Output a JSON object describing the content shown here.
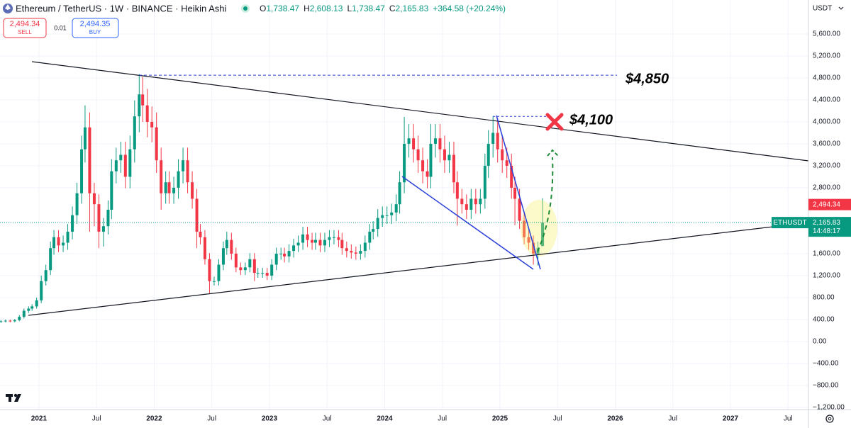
{
  "chart_data": {
    "type": "candlestick",
    "title": "Ethereum / TetherUS · 1W · BINANCE · Heikin Ashi",
    "legend_ohlc": [
      {
        "key": "O",
        "value": "1,738.47"
      },
      {
        "key": "H",
        "value": "2,608.13"
      },
      {
        "key": "L",
        "value": "1,738.47"
      },
      {
        "key": "C",
        "value": "2,165.83"
      }
    ],
    "change": "+364.58 (+20.24%)",
    "sell": {
      "price": "2,494.34",
      "label": "SELL"
    },
    "lot": "0.01",
    "buy": {
      "price": "2,494.35",
      "label": "BUY"
    },
    "currency": "USDT",
    "up_color": "#089981",
    "down_color": "#f23645",
    "grid": true,
    "x": [
      2020.67,
      2020.71,
      2020.75,
      2020.79,
      2020.83,
      2020.87,
      2020.91,
      2020.94,
      2020.98,
      2021.02,
      2021.06,
      2021.1,
      2021.13,
      2021.17,
      2021.21,
      2021.25,
      2021.29,
      2021.33,
      2021.37,
      2021.4,
      2021.44,
      2021.48,
      2021.52,
      2021.56,
      2021.6,
      2021.63,
      2021.67,
      2021.71,
      2021.75,
      2021.79,
      2021.83,
      2021.87,
      2021.9,
      2021.94,
      2021.98,
      2022.02,
      2022.06,
      2022.1,
      2022.13,
      2022.17,
      2022.21,
      2022.25,
      2022.29,
      2022.33,
      2022.37,
      2022.4,
      2022.44,
      2022.48,
      2022.52,
      2022.56,
      2022.6,
      2022.63,
      2022.67,
      2022.71,
      2022.75,
      2022.79,
      2022.83,
      2022.87,
      2022.9,
      2022.94,
      2022.98,
      2023.02,
      2023.06,
      2023.1,
      2023.13,
      2023.17,
      2023.21,
      2023.25,
      2023.29,
      2023.33,
      2023.37,
      2023.4,
      2023.44,
      2023.48,
      2023.52,
      2023.56,
      2023.6,
      2023.63,
      2023.67,
      2023.71,
      2023.75,
      2023.79,
      2023.83,
      2023.87,
      2023.9,
      2023.94,
      2023.98,
      2024.02,
      2024.06,
      2024.1,
      2024.13,
      2024.17,
      2024.21,
      2024.25,
      2024.29,
      2024.33,
      2024.37,
      2024.4,
      2024.44,
      2024.48,
      2024.52,
      2024.56,
      2024.6,
      2024.63,
      2024.67,
      2024.71,
      2024.75,
      2024.79,
      2024.83,
      2024.87,
      2024.9,
      2024.94,
      2024.98,
      2025.02,
      2025.06,
      2025.1,
      2025.13,
      2025.17,
      2025.21,
      2025.25,
      2025.29,
      2025.33,
      2025.37
    ],
    "open": [
      360,
      370,
      380,
      370,
      390,
      450,
      560,
      600,
      640,
      750,
      1100,
      1300,
      1700,
      1900,
      1750,
      1800,
      2000,
      2300,
      2700,
      3500,
      3900,
      2700,
      2500,
      2000,
      2100,
      2400,
      3100,
      3300,
      3400,
      3000,
      3500,
      4100,
      4500,
      4300,
      4000,
      3900,
      3300,
      2700,
      2900,
      2700,
      2800,
      3100,
      3300,
      2900,
      2600,
      2000,
      1900,
      1500,
      1100,
      1100,
      1400,
      1700,
      1850,
      1600,
      1350,
      1300,
      1350,
      1500,
      1250,
      1250,
      1250,
      1200,
      1400,
      1600,
      1600,
      1550,
      1650,
      1750,
      1800,
      1950,
      1850,
      1800,
      1850,
      1750,
      1850,
      1900,
      1900,
      1850,
      1700,
      1650,
      1620,
      1600,
      1650,
      1800,
      2000,
      2050,
      2250,
      2300,
      2300,
      2350,
      2500,
      2900,
      3600,
      3700,
      3500,
      3300,
      3100,
      3000,
      3600,
      3700,
      3500,
      3300,
      3400,
      2900,
      2600,
      2500,
      2400,
      2600,
      2500,
      2600,
      3200,
      3600,
      3800,
      3500,
      3300,
      3200,
      2800,
      2600,
      2200,
      1900,
      1800,
      1600,
      1738.47
    ],
    "high": [
      390,
      400,
      400,
      410,
      480,
      600,
      640,
      680,
      800,
      1200,
      1400,
      1820,
      2030,
      2030,
      1930,
      2140,
      2460,
      2890,
      3750,
      4300,
      4170,
      2890,
      2680,
      2250,
      2570,
      3320,
      3530,
      3640,
      3640,
      3750,
      4390,
      4870,
      4820,
      4600,
      4280,
      4170,
      3530,
      3100,
      3100,
      3000,
      3320,
      3530,
      3530,
      3100,
      2780,
      2140,
      2030,
      1610,
      1180,
      1500,
      1820,
      2000,
      1980,
      1710,
      1440,
      1440,
      1610,
      1610,
      1340,
      1340,
      1340,
      1500,
      1710,
      1710,
      1710,
      1770,
      1870,
      1930,
      2090,
      2090,
      1980,
      1980,
      1980,
      1980,
      2030,
      2030,
      2030,
      1980,
      1820,
      1770,
      1730,
      1770,
      1930,
      2140,
      2190,
      2410,
      2460,
      2460,
      2510,
      2680,
      3100,
      4090,
      3960,
      3960,
      3750,
      3530,
      3320,
      3960,
      3960,
      3960,
      3750,
      3640,
      3640,
      3100,
      2780,
      2680,
      2780,
      2780,
      2780,
      3420,
      3850,
      4100,
      4070,
      3750,
      3530,
      3420,
      3000,
      2780,
      2350,
      2030,
      1930,
      1820,
      2608.13
    ],
    "low": [
      340,
      350,
      350,
      350,
      370,
      420,
      520,
      560,
      600,
      700,
      1020,
      1210,
      1580,
      1630,
      1630,
      1670,
      1860,
      2140,
      2510,
      3260,
      2000,
      2100,
      1700,
      1730,
      1950,
      2230,
      2880,
      3070,
      2790,
      2790,
      3260,
      3810,
      4000,
      3720,
      3630,
      3070,
      2400,
      2510,
      2510,
      2510,
      2600,
      2880,
      2700,
      2420,
      1700,
      1770,
      1400,
      880,
      1020,
      1020,
      1300,
      1580,
      1490,
      1260,
      1210,
      1210,
      1260,
      1100,
      1160,
      1160,
      1120,
      1120,
      1300,
      1490,
      1440,
      1440,
      1530,
      1630,
      1670,
      1720,
      1670,
      1670,
      1630,
      1630,
      1720,
      1770,
      1720,
      1580,
      1530,
      1510,
      1490,
      1490,
      1530,
      1670,
      1860,
      1910,
      2090,
      2140,
      2140,
      2190,
      2330,
      2700,
      3350,
      3260,
      3070,
      2880,
      2790,
      2790,
      3350,
      3260,
      3070,
      3070,
      2700,
      2110,
      2330,
      2230,
      2230,
      2330,
      2330,
      2420,
      2980,
      3350,
      3260,
      3070,
      2980,
      2600,
      2120,
      2050,
      1770,
      1670,
      1400,
      1385,
      1738.47
    ],
    "close": [
      370,
      380,
      370,
      390,
      450,
      560,
      600,
      640,
      750,
      1100,
      1300,
      1700,
      1900,
      1750,
      1800,
      2000,
      2300,
      2700,
      3500,
      3900,
      2700,
      2500,
      2000,
      2100,
      2400,
      3100,
      3300,
      3400,
      3000,
      3500,
      4100,
      4500,
      4300,
      4000,
      3900,
      3300,
      2700,
      2900,
      2700,
      2800,
      3100,
      3300,
      2900,
      2600,
      2000,
      1900,
      1500,
      1100,
      1100,
      1400,
      1700,
      1850,
      1600,
      1350,
      1300,
      1350,
      1500,
      1250,
      1250,
      1250,
      1200,
      1400,
      1600,
      1600,
      1550,
      1650,
      1750,
      1800,
      1950,
      1850,
      1800,
      1850,
      1750,
      1850,
      1900,
      1900,
      1850,
      1700,
      1650,
      1620,
      1600,
      1650,
      1800,
      2000,
      2050,
      2250,
      2300,
      2300,
      2350,
      2500,
      2900,
      3600,
      3700,
      3500,
      3300,
      3100,
      3000,
      3600,
      3700,
      3500,
      3300,
      3400,
      2900,
      2600,
      2500,
      2400,
      2600,
      2500,
      2600,
      3200,
      3600,
      3800,
      3500,
      3300,
      3200,
      2800,
      2600,
      2200,
      1900,
      1800,
      1600,
      1700,
      2165.83
    ],
    "xlim": [
      2020.662,
      2027.677
    ],
    "ylim": [
      -1239,
      6219
    ],
    "xticks": [
      2021,
      {
        "value": 2021.5,
        "label": "Jul"
      },
      2022,
      {
        "value": 2022.5,
        "label": "Jul"
      },
      2023,
      {
        "value": 2023.5,
        "label": "Jul"
      },
      2024,
      {
        "value": 2024.5,
        "label": "Jul"
      },
      2025,
      {
        "value": 2025.5,
        "label": "Jul"
      },
      2026,
      {
        "value": 2026.5,
        "label": "Jul"
      },
      2027,
      {
        "value": 2027.5,
        "label": "Jul"
      }
    ],
    "yticks": [
      {
        "value": 5600,
        "label": "5,600.00"
      },
      {
        "value": 5200,
        "label": "5,200.00"
      },
      {
        "value": 4800,
        "label": "4,800.00"
      },
      {
        "value": 4400,
        "label": "4,400.00"
      },
      {
        "value": 4000,
        "label": "4,000.00"
      },
      {
        "value": 3600,
        "label": "3,600.00"
      },
      {
        "value": 3200,
        "label": "3,200.00"
      },
      {
        "value": 2800,
        "label": "2,800.00"
      },
      {
        "value": 1600,
        "label": "1,600.00"
      },
      {
        "value": 1200,
        "label": "1,200.00"
      },
      {
        "value": 800,
        "label": "800.00"
      },
      {
        "value": 400,
        "label": "400.00"
      },
      {
        "value": 0,
        "label": "0.00"
      },
      {
        "value": -400,
        "label": "−400.00"
      },
      {
        "value": -800,
        "label": "−800.00"
      },
      {
        "value": -1200,
        "label": "−1,200.00"
      }
    ],
    "annotations": [
      {
        "text": "$4,850",
        "value": 4850
      },
      {
        "text": "$4,100",
        "value": 4100
      }
    ],
    "price_tags": [
      {
        "value": 2494.34,
        "label": "2,494.34",
        "color": "#f23645"
      },
      {
        "value": 2165.83,
        "label": "2,165.83",
        "symbol": "ETHUSDT",
        "countdown": "14:48:17",
        "color": "#089981"
      }
    ]
  }
}
